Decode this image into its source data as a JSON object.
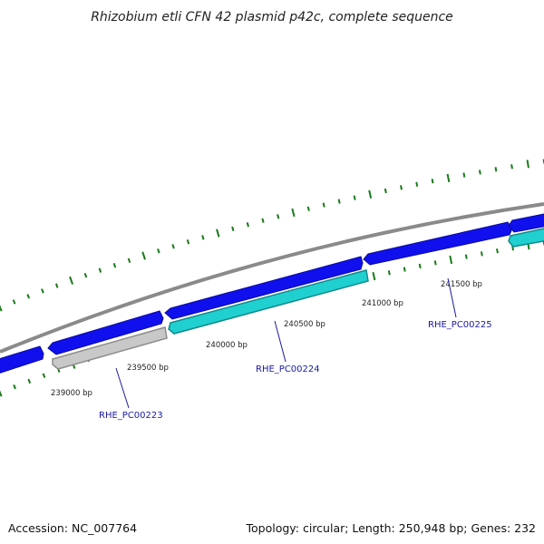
{
  "title": "Rhizobium etli CFN 42 plasmid p42c, complete sequence",
  "footer": {
    "accession": "Accession: NC_007764",
    "summary": "Topology: circular; Length: 250,948 bp; Genes: 232"
  },
  "colors": {
    "backbone": "#8a8a8a",
    "forward_gene": "#1010ee",
    "reverse_gene_cyan": "#20d0d0",
    "reverse_gene_grey": "#c0c0c0",
    "tick": "#1a7a1a",
    "gene_label": "#1a1aa0"
  },
  "scale_ticks": [
    {
      "label": "239000 bp"
    },
    {
      "label": "239500 bp"
    },
    {
      "label": "240000 bp"
    },
    {
      "label": "240500 bp"
    },
    {
      "label": "241000 bp"
    },
    {
      "label": "241500 bp"
    }
  ],
  "gene_labels": [
    {
      "label": "RHE_PC00223"
    },
    {
      "label": "RHE_PC00224"
    },
    {
      "label": "RHE_PC00225"
    }
  ]
}
